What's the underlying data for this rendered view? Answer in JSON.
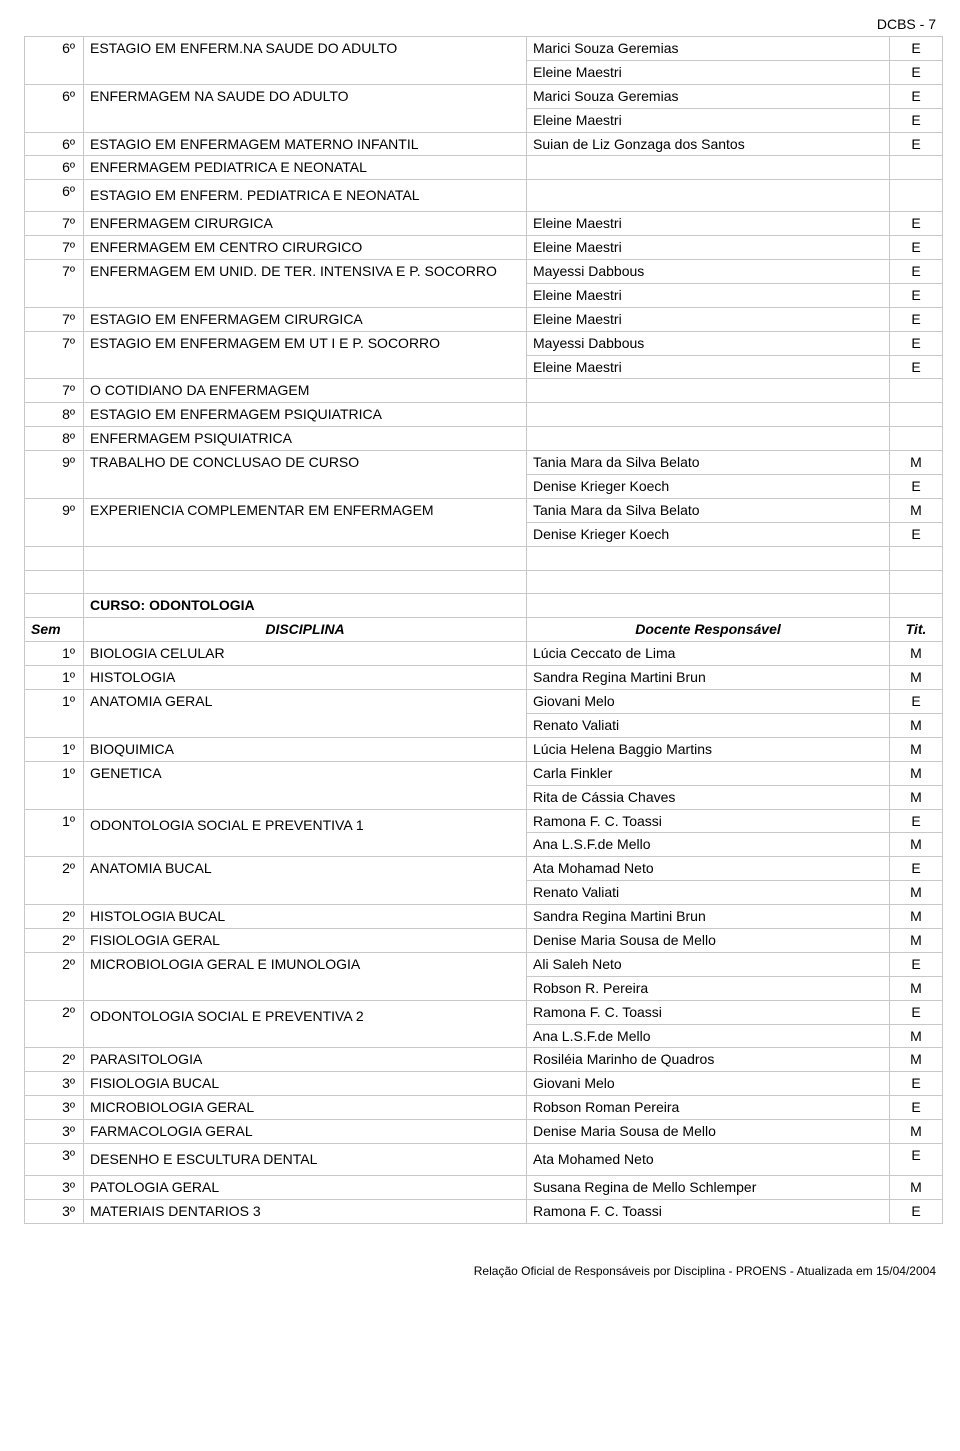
{
  "page_header": "DCBS - 7",
  "footer": "Relação Oficial de Responsáveis por Disciplina - PROENS - Atualizada em 15/04/2004",
  "section1_rows": [
    {
      "sem": "6º",
      "disc": "ESTAGIO EM ENFERM.NA SAUDE DO ADULTO",
      "doc": [
        "Marici Souza Geremias",
        "Eleine Maestri"
      ],
      "tit": [
        "E",
        "E"
      ],
      "rowspan": 2
    },
    {
      "sem": "6º",
      "disc": "ENFERMAGEM NA SAUDE DO ADULTO",
      "doc": [
        "Marici Souza Geremias",
        "Eleine Maestri"
      ],
      "tit": [
        "E",
        "E"
      ],
      "rowspan": 2
    },
    {
      "sem": "6º",
      "disc": "ESTAGIO EM ENFERMAGEM MATERNO INFANTIL",
      "doc": [
        "Suian de Liz Gonzaga dos Santos"
      ],
      "tit": [
        "E"
      ],
      "rowspan": 1
    },
    {
      "sem": "6º",
      "disc": "ENFERMAGEM PEDIATRICA E NEONATAL",
      "doc": [
        ""
      ],
      "tit": [
        ""
      ],
      "rowspan": 1
    },
    {
      "sem": "6º",
      "disc": "ESTAGIO EM ENFERM. PEDIATRICA E NEONATAL",
      "doc": [
        ""
      ],
      "tit": [
        ""
      ],
      "rowspan": 1,
      "tall": true
    },
    {
      "sem": "7º",
      "disc": "ENFERMAGEM CIRURGICA",
      "doc": [
        "Eleine Maestri"
      ],
      "tit": [
        "E"
      ],
      "rowspan": 1
    },
    {
      "sem": "7º",
      "disc": "ENFERMAGEM EM CENTRO CIRURGICO",
      "doc": [
        "Eleine Maestri"
      ],
      "tit": [
        "E"
      ],
      "rowspan": 1
    },
    {
      "sem": "7º",
      "disc": "ENFERMAGEM EM UNID. DE TER. INTENSIVA E  P. SOCORRO",
      "doc": [
        "Mayessi Dabbous",
        "Eleine Maestri"
      ],
      "tit": [
        "E",
        "E"
      ],
      "rowspan": 2
    },
    {
      "sem": "7º",
      "disc": "ESTAGIO EM ENFERMAGEM CIRURGICA",
      "doc": [
        "Eleine Maestri"
      ],
      "tit": [
        "E"
      ],
      "rowspan": 1
    },
    {
      "sem": "7º",
      "disc": "ESTAGIO EM ENFERMAGEM EM UT I E P. SOCORRO",
      "doc": [
        "Mayessi Dabbous",
        "Eleine Maestri"
      ],
      "tit": [
        "E",
        "E"
      ],
      "rowspan": 2
    },
    {
      "sem": "7º",
      "disc": "O COTIDIANO DA ENFERMAGEM",
      "doc": [
        ""
      ],
      "tit": [
        ""
      ],
      "rowspan": 1
    },
    {
      "sem": "8º",
      "disc": "ESTAGIO EM ENFERMAGEM PSIQUIATRICA",
      "doc": [
        ""
      ],
      "tit": [
        ""
      ],
      "rowspan": 1
    },
    {
      "sem": "8º",
      "disc": "ENFERMAGEM PSIQUIATRICA",
      "doc": [
        ""
      ],
      "tit": [
        ""
      ],
      "rowspan": 1
    },
    {
      "sem": "9º",
      "disc": "TRABALHO DE CONCLUSAO DE CURSO",
      "doc": [
        "Tania Mara da Silva Belato",
        "Denise Krieger Koech"
      ],
      "tit": [
        "M",
        "E"
      ],
      "rowspan": 2
    },
    {
      "sem": "9º",
      "disc": "EXPERIENCIA COMPLEMENTAR EM ENFERMAGEM",
      "doc": [
        "Tania Mara da Silva Belato",
        "Denise Krieger Koech"
      ],
      "tit": [
        "M",
        "E"
      ],
      "rowspan": 2
    }
  ],
  "curso_title": "CURSO: ODONTOLOGIA",
  "hdr_sem": "Sem",
  "hdr_disc": "DISCIPLINA",
  "hdr_doc": "Docente Responsável",
  "hdr_tit": "Tit.",
  "section2_rows": [
    {
      "sem": "1º",
      "disc": "BIOLOGIA CELULAR",
      "doc": [
        "Lúcia Ceccato de Lima"
      ],
      "tit": [
        "M"
      ],
      "rowspan": 1
    },
    {
      "sem": "1º",
      "disc": "HISTOLOGIA",
      "doc": [
        "Sandra Regina Martini Brun"
      ],
      "tit": [
        "M"
      ],
      "rowspan": 1
    },
    {
      "sem": "1º",
      "disc": "ANATOMIA GERAL",
      "doc": [
        "Giovani Melo",
        "Renato Valiati"
      ],
      "tit": [
        "E",
        "M"
      ],
      "rowspan": 2
    },
    {
      "sem": "1º",
      "disc": "BIOQUIMICA",
      "doc": [
        "Lúcia Helena Baggio Martins"
      ],
      "tit": [
        "M"
      ],
      "rowspan": 1
    },
    {
      "sem": "1º",
      "disc": "GENETICA",
      "doc": [
        "Carla Finkler",
        "Rita de Cássia Chaves"
      ],
      "tit": [
        "M",
        "M"
      ],
      "rowspan": 2
    },
    {
      "sem": "1º",
      "disc": "ODONTOLOGIA SOCIAL E PREVENTIVA  1",
      "doc": [
        "Ramona F. C. Toassi",
        "Ana L.S.F.de Mello"
      ],
      "tit": [
        "E",
        "M"
      ],
      "rowspan": 2,
      "tall": true
    },
    {
      "sem": "2º",
      "disc": "ANATOMIA BUCAL",
      "doc": [
        "Ata Mohamad Neto",
        "Renato Valiati"
      ],
      "tit": [
        "E",
        "M"
      ],
      "rowspan": 2
    },
    {
      "sem": "2º",
      "disc": "HISTOLOGIA BUCAL",
      "doc": [
        "Sandra Regina Martini Brun"
      ],
      "tit": [
        "M"
      ],
      "rowspan": 1
    },
    {
      "sem": "2º",
      "disc": "FISIOLOGIA GERAL",
      "doc": [
        "Denise Maria Sousa de Mello"
      ],
      "tit": [
        "M"
      ],
      "rowspan": 1
    },
    {
      "sem": "2º",
      "disc": "MICROBIOLOGIA GERAL E IMUNOLOGIA",
      "doc": [
        "Ali Saleh Neto",
        "Robson R. Pereira"
      ],
      "tit": [
        "E",
        "M"
      ],
      "rowspan": 2
    },
    {
      "sem": "2º",
      "disc": "ODONTOLOGIA SOCIAL E PREVENTIVA  2",
      "doc": [
        "Ramona F. C. Toassi",
        "Ana L.S.F.de Mello"
      ],
      "tit": [
        "E",
        "M"
      ],
      "rowspan": 2,
      "tall": true
    },
    {
      "sem": "2º",
      "disc": "PARASITOLOGIA",
      "doc": [
        "Rosiléia Marinho de Quadros"
      ],
      "tit": [
        "M"
      ],
      "rowspan": 1
    },
    {
      "sem": "3º",
      "disc": "FISIOLOGIA BUCAL",
      "doc": [
        "Giovani Melo"
      ],
      "tit": [
        "E"
      ],
      "rowspan": 1
    },
    {
      "sem": "3º",
      "disc": "MICROBIOLOGIA GERAL",
      "doc": [
        "Robson Roman Pereira"
      ],
      "tit": [
        "E"
      ],
      "rowspan": 1
    },
    {
      "sem": "3º",
      "disc": "FARMACOLOGIA GERAL",
      "doc": [
        "Denise Maria Sousa de Mello"
      ],
      "tit": [
        "M"
      ],
      "rowspan": 1
    },
    {
      "sem": "3º",
      "disc": "DESENHO E ESCULTURA DENTAL",
      "doc": [
        "Ata Mohamed Neto"
      ],
      "tit": [
        "E"
      ],
      "rowspan": 1,
      "tall": true
    },
    {
      "sem": "3º",
      "disc": "PATOLOGIA GERAL",
      "doc": [
        "Susana Regina de Mello Schlemper"
      ],
      "tit": [
        "M"
      ],
      "rowspan": 1
    },
    {
      "sem": "3º",
      "disc": "MATERIAIS DENTARIOS 3",
      "doc": [
        "Ramona F. C. Toassi"
      ],
      "tit": [
        "E"
      ],
      "rowspan": 1
    }
  ]
}
